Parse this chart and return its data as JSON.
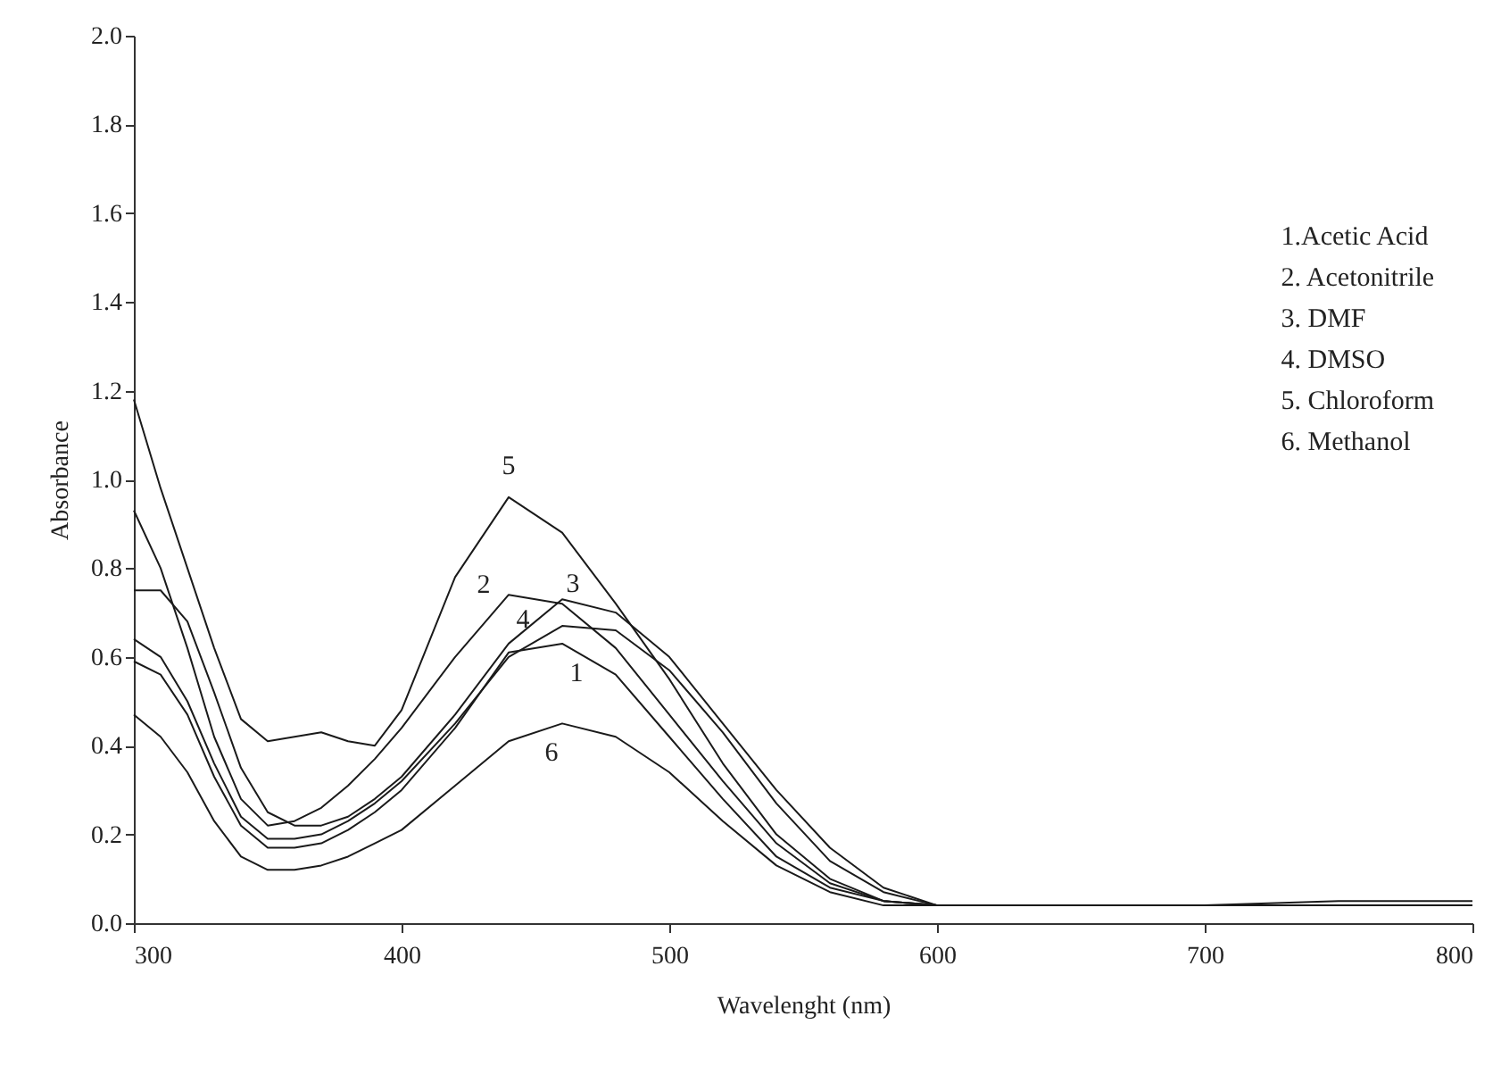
{
  "chart_data": {
    "type": "line",
    "xlabel": "Wavelenght (nm)",
    "ylabel": "Absorbance",
    "x": [
      300,
      310,
      320,
      330,
      340,
      350,
      360,
      370,
      380,
      390,
      400,
      420,
      440,
      460,
      480,
      500,
      520,
      540,
      560,
      580,
      600,
      650,
      700,
      750,
      800
    ],
    "series": [
      {
        "name": "1",
        "color": "#1a1a1a",
        "values": [
          0.59,
          0.56,
          0.47,
          0.33,
          0.22,
          0.17,
          0.17,
          0.18,
          0.21,
          0.25,
          0.3,
          0.44,
          0.61,
          0.63,
          0.56,
          0.42,
          0.28,
          0.15,
          0.08,
          0.05,
          0.04,
          0.04,
          0.04,
          0.04,
          0.04
        ]
      },
      {
        "name": "2",
        "color": "#1a1a1a",
        "values": [
          0.93,
          0.8,
          0.62,
          0.42,
          0.28,
          0.22,
          0.23,
          0.26,
          0.31,
          0.37,
          0.44,
          0.6,
          0.74,
          0.72,
          0.62,
          0.47,
          0.32,
          0.18,
          0.09,
          0.05,
          0.04,
          0.04,
          0.04,
          0.04,
          0.04
        ]
      },
      {
        "name": "3",
        "color": "#1a1a1a",
        "values": [
          0.75,
          0.75,
          0.68,
          0.52,
          0.35,
          0.25,
          0.22,
          0.22,
          0.24,
          0.28,
          0.33,
          0.47,
          0.63,
          0.73,
          0.7,
          0.6,
          0.45,
          0.3,
          0.17,
          0.08,
          0.04,
          0.04,
          0.04,
          0.04,
          0.04
        ]
      },
      {
        "name": "4",
        "color": "#1a1a1a",
        "values": [
          0.64,
          0.6,
          0.5,
          0.36,
          0.24,
          0.19,
          0.19,
          0.2,
          0.23,
          0.27,
          0.32,
          0.45,
          0.6,
          0.67,
          0.66,
          0.57,
          0.43,
          0.27,
          0.14,
          0.07,
          0.04,
          0.04,
          0.04,
          0.04,
          0.04
        ]
      },
      {
        "name": "5",
        "color": "#1a1a1a",
        "values": [
          1.18,
          0.98,
          0.8,
          0.62,
          0.46,
          0.41,
          0.42,
          0.43,
          0.41,
          0.4,
          0.48,
          0.78,
          0.96,
          0.88,
          0.72,
          0.55,
          0.36,
          0.2,
          0.1,
          0.05,
          0.04,
          0.04,
          0.04,
          0.05,
          0.05
        ]
      },
      {
        "name": "6",
        "color": "#1a1a1a",
        "values": [
          0.47,
          0.42,
          0.34,
          0.23,
          0.15,
          0.12,
          0.12,
          0.13,
          0.15,
          0.18,
          0.21,
          0.31,
          0.41,
          0.45,
          0.42,
          0.34,
          0.23,
          0.13,
          0.07,
          0.04,
          0.04,
          0.04,
          0.04,
          0.04,
          0.04
        ]
      }
    ],
    "xlim": [
      300,
      800
    ],
    "xticks": [
      300,
      400,
      500,
      600,
      700,
      800
    ],
    "ylim": [
      0,
      2
    ],
    "yticks": [
      {
        "value": 0,
        "label": "0.0"
      },
      {
        "value": 0.2,
        "label": "0.2"
      },
      {
        "value": 0.4,
        "label": "0.4"
      },
      {
        "value": 0.6,
        "label": "0.6"
      },
      {
        "value": 0.8,
        "label": "0.8"
      },
      {
        "value": 1,
        "label": "1.0"
      },
      {
        "value": 1.2,
        "label": "1.2"
      },
      {
        "value": 1.4,
        "label": "1.4"
      },
      {
        "value": 1.6,
        "label": "1.6"
      },
      {
        "value": 1.8,
        "label": "1.8"
      },
      {
        "value": 2,
        "label": "2.0"
      }
    ],
    "grid": false,
    "legend": false,
    "marker": "none",
    "line_style": "solid",
    "annotations": [
      "1.Acetic Acid",
      "2. Acetonitrile",
      "3. DMF",
      "4. DMSO",
      "5. Chloroform",
      "6. Methanol"
    ]
  }
}
